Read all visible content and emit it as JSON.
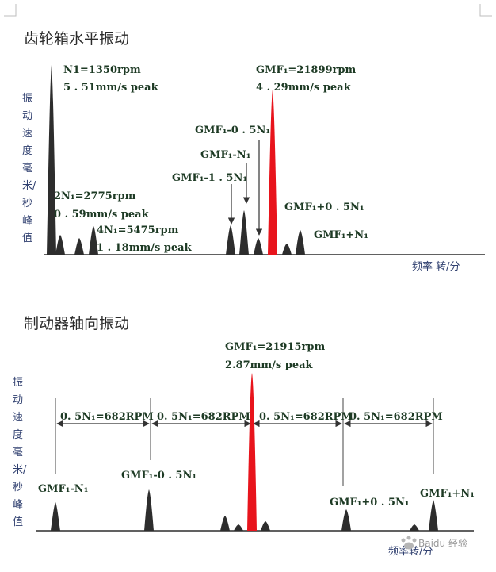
{
  "diagram1": {
    "title": "齿轮箱水平振动",
    "ylabel": [
      "振",
      "动",
      "速",
      "度",
      "毫",
      "米/",
      "秒",
      "峰",
      "值"
    ],
    "xlabel": "频率  转/分",
    "annotations": {
      "n1_speed": "N1=1350rpm",
      "n1_amp": "5 . 51mm/s peak",
      "gmf_speed": "GMF₁=21899rpm",
      "gmf_amp": "4 . 29mm/s peak",
      "gmf_minus_05": "GMF₁-0 . 5N₁",
      "gmf_minus_1": "GMF₁-N₁",
      "gmf_minus_15": "GMF₁-1 . 5N₁",
      "n2_speed": "2N₁=2775rpm",
      "n2_amp": "0 . 59mm/s peak",
      "n4_speed": "4N₁=5475rpm",
      "n4_amp": "1 . 18mm/s peak",
      "gmf_plus_05": "GMF₁+0 . 5N₁",
      "gmf_plus_1": "GMF₁+N₁"
    }
  },
  "diagram2": {
    "title": "制动器轴向振动",
    "ylabel": [
      "振",
      "动",
      "速",
      "度",
      "毫",
      "米/",
      "秒",
      "峰",
      "值"
    ],
    "xlabel": "频率转/分",
    "annotations": {
      "gmf_speed": "GMF₁=21915rpm",
      "gmf_amp": "2.87mm/s peak",
      "spacing_1": "0. 5N₁=682RPM",
      "spacing_2": "0. 5N₁=682RPM",
      "spacing_3": "0. 5N₁=682RPM",
      "spacing_4": "0. 5N₁=682RPM",
      "gmf_minus_1": "GMF₁-N₁",
      "gmf_minus_05": "GMF₁-0 . 5N₁",
      "gmf_plus_05": "GMF₁+0 . 5N₁",
      "gmf_plus_1": "GMF₁+N₁"
    }
  },
  "watermark": "Baidu 经验",
  "colors": {
    "peak": "#2d2d2d",
    "highlight": "#e8141c",
    "ink": "#1d3a24"
  }
}
